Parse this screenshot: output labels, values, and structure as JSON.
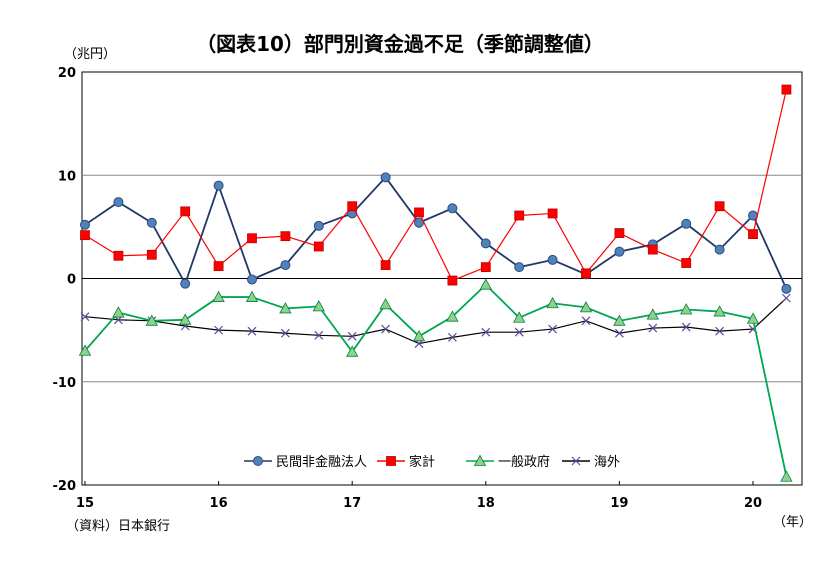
{
  "chart_data": {
    "type": "line",
    "title": "（図表10）部門別資金過不足（季節調整値）",
    "y_unit": "（兆円）",
    "x_unit": "（年）",
    "source": "（資料）日本銀行",
    "ylim": [
      -20,
      20
    ],
    "y_ticks": [
      "20",
      "10",
      "0",
      "-10",
      "-20"
    ],
    "x_ticks": [
      "15",
      "16",
      "17",
      "18",
      "19",
      "20"
    ],
    "grid": true,
    "legend_position": "bottom-center",
    "series": [
      {
        "name": "民間非金融法人",
        "color": "#1f3864",
        "marker": "circle",
        "marker_color": "#4f81bd",
        "values": [
          5.2,
          7.4,
          5.4,
          -0.5,
          9.0,
          -0.1,
          1.3,
          5.1,
          6.3,
          9.8,
          5.4,
          6.8,
          3.4,
          1.1,
          1.8,
          0.4,
          2.6,
          3.3,
          5.3,
          2.8,
          6.1,
          -1.0
        ]
      },
      {
        "name": "家計",
        "color": "#ff0000",
        "marker": "square",
        "marker_color": "#ff0000",
        "values": [
          4.2,
          2.2,
          2.3,
          6.5,
          1.2,
          3.9,
          4.1,
          3.1,
          7.0,
          1.3,
          6.4,
          -0.2,
          1.1,
          6.1,
          6.3,
          0.5,
          4.4,
          2.8,
          1.5,
          7.0,
          4.3,
          18.3
        ]
      },
      {
        "name": "一般政府",
        "color": "#00a651",
        "marker": "triangle",
        "marker_color": "#8fd18a",
        "values": [
          -7.0,
          -3.3,
          -4.1,
          -4.0,
          -1.8,
          -1.8,
          -2.9,
          -2.7,
          -7.1,
          -2.5,
          -5.6,
          -3.7,
          -0.6,
          -3.8,
          -2.4,
          -2.8,
          -4.1,
          -3.5,
          -3.0,
          -3.2,
          -3.9,
          -19.2
        ]
      },
      {
        "name": "海外",
        "color": "#000000",
        "marker": "x",
        "marker_color": "#5b4a9c",
        "values": [
          -3.7,
          -4.0,
          -4.1,
          -4.6,
          -5.0,
          -5.1,
          -5.3,
          -5.5,
          -5.6,
          -4.9,
          -6.3,
          -5.7,
          -5.2,
          -5.2,
          -4.9,
          -4.1,
          -5.3,
          -4.8,
          -4.7,
          -5.1,
          -4.9,
          -1.9
        ]
      }
    ]
  }
}
